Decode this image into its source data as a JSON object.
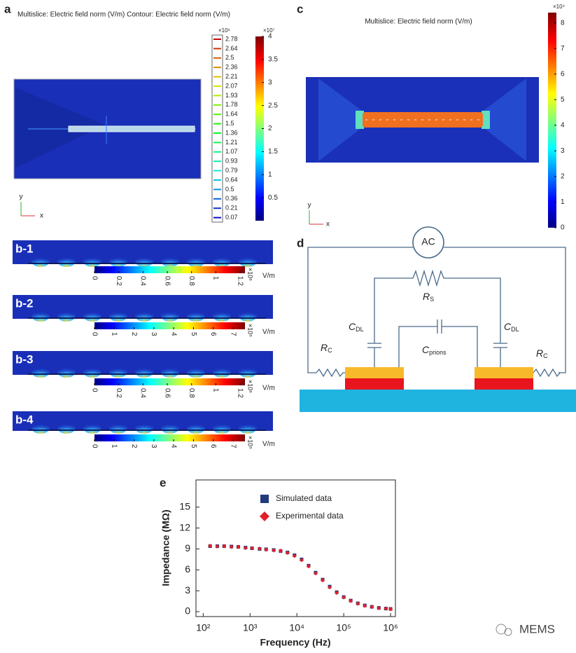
{
  "panel_a": {
    "label": "a",
    "title": "Multislice: Electric field norm (V/m) Contour: Electric field norm (V/m)",
    "contour_legend": {
      "exponent": "×10⁶",
      "levels": [
        2.78,
        2.64,
        2.5,
        2.36,
        2.21,
        2.07,
        1.93,
        1.78,
        1.64,
        1.5,
        1.36,
        1.21,
        1.07,
        0.93,
        0.79,
        0.64,
        0.5,
        0.36,
        0.21,
        0.07
      ]
    },
    "colorbar": {
      "exponent": "×10⁷",
      "lim": [
        0,
        4
      ],
      "ticks": [
        0.5,
        1,
        1.5,
        2,
        2.5,
        3,
        3.5,
        4
      ]
    },
    "axes": {
      "y": "y",
      "x": "x"
    }
  },
  "panel_b": [
    {
      "label": "b-1",
      "colorbar": {
        "lim": [
          0,
          1.24
        ],
        "ticks": [
          0,
          0.2,
          0.4,
          0.6,
          0.8,
          1,
          1.2
        ],
        "exponent": "×10⁶",
        "unit": "V/m"
      }
    },
    {
      "label": "b-2",
      "colorbar": {
        "lim": [
          0,
          7.6
        ],
        "ticks": [
          0,
          1,
          2,
          3,
          4,
          5,
          6,
          7
        ],
        "exponent": "×10⁵",
        "unit": "V/m"
      }
    },
    {
      "label": "b-3",
      "colorbar": {
        "lim": [
          0,
          1.24
        ],
        "ticks": [
          0,
          0.2,
          0.4,
          0.6,
          0.8,
          1,
          1.2
        ],
        "exponent": "×10⁶",
        "unit": "V/m"
      }
    },
    {
      "label": "b-4",
      "colorbar": {
        "lim": [
          0,
          7.6
        ],
        "ticks": [
          0,
          1,
          2,
          3,
          4,
          5,
          6,
          7
        ],
        "exponent": "×10⁵",
        "unit": "V/m"
      }
    }
  ],
  "panel_c": {
    "label": "c",
    "title": "Multislice: Electric field norm (V/m)",
    "colorbar": {
      "exponent": "×10⁴",
      "lim": [
        0,
        8.4
      ],
      "ticks": [
        0,
        1,
        2,
        3,
        4,
        5,
        6,
        7,
        8
      ]
    },
    "axes": {
      "y": "y",
      "x": "x"
    }
  },
  "panel_d": {
    "label": "d",
    "source": "AC",
    "components": [
      {
        "symbol": "R",
        "subscript": "S"
      },
      {
        "symbol": "C",
        "subscript": "DL"
      },
      {
        "symbol": "C",
        "subscript": "DL"
      },
      {
        "symbol": "C",
        "subscript": "prions"
      },
      {
        "symbol": "R",
        "subscript": "C"
      },
      {
        "symbol": "R",
        "subscript": "C"
      }
    ]
  },
  "chart_data": {
    "type": "scatter",
    "label": "e",
    "x_label": "Frequency (Hz)",
    "y_label": "Impedance (MΩ)",
    "xscale": "log",
    "xlim": [
      70,
      1270000
    ],
    "ylim": [
      -0.7,
      18.9
    ],
    "xticks": [
      {
        "value": 100,
        "label": "10²"
      },
      {
        "value": 1000,
        "label": "10³"
      },
      {
        "value": 10000,
        "label": "10⁴"
      },
      {
        "value": 100000,
        "label": "10⁵"
      },
      {
        "value": 1000000,
        "label": "10⁶"
      }
    ],
    "yticks": [
      0,
      3,
      6,
      9,
      12,
      15
    ],
    "x": [
      140,
      200,
      280,
      400,
      560,
      800,
      1100,
      1600,
      2200,
      3200,
      4500,
      6300,
      8900,
      12600,
      17800,
      25100,
      35500,
      50100,
      70800,
      100000,
      141000,
      200000,
      282000,
      398000,
      562000,
      794000,
      1000000
    ],
    "series": [
      {
        "name": "Simulated data",
        "color": "#1f3b7a",
        "marker": "square",
        "values": [
          9.4,
          9.4,
          9.4,
          9.35,
          9.3,
          9.2,
          9.1,
          9.0,
          8.95,
          8.85,
          8.7,
          8.5,
          8.1,
          7.5,
          6.6,
          5.6,
          4.6,
          3.6,
          2.8,
          2.1,
          1.6,
          1.2,
          0.9,
          0.7,
          0.55,
          0.45,
          0.4
        ]
      },
      {
        "name": "Experimental data",
        "color": "#e0202a",
        "marker": "diamond",
        "values": [
          9.45,
          9.35,
          9.4,
          9.3,
          9.3,
          9.15,
          9.1,
          9.05,
          8.9,
          8.8,
          8.75,
          8.45,
          8.0,
          7.4,
          6.5,
          5.5,
          4.5,
          3.5,
          2.7,
          2.05,
          1.55,
          1.15,
          0.85,
          0.7,
          0.5,
          0.45,
          0.35
        ]
      }
    ],
    "legend": "top-center"
  },
  "watermark": "MEMS"
}
